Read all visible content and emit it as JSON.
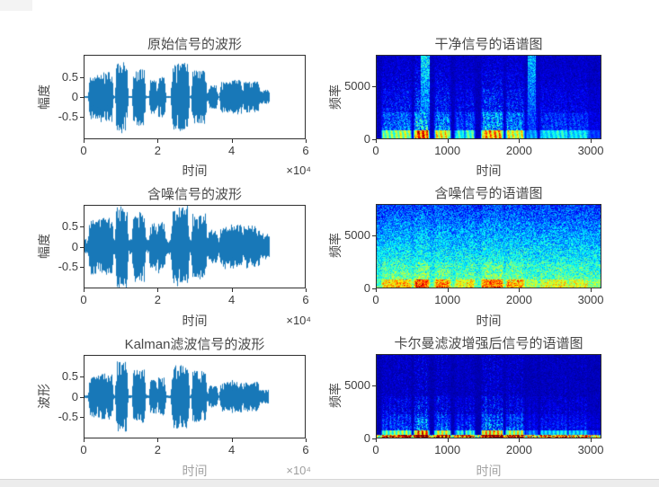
{
  "figure": {
    "background": "#ffffff",
    "colors": {
      "waveform_line": "#1878b8",
      "axis_box": "#2f2f2f",
      "tick_text": "#3d3d3d",
      "title_text": "#474747"
    }
  },
  "chart_data": [
    {
      "type": "line",
      "subtype": "waveform",
      "title": "原始信号的波形",
      "xlabel": "时间",
      "ylabel": "幅度",
      "x_multiplier": "×10⁴",
      "xlim": [
        0,
        6
      ],
      "ylim": [
        -1.05,
        1.05
      ],
      "xticks": [
        0,
        2,
        4,
        6
      ],
      "yticks": [
        0.5,
        0,
        -0.5
      ],
      "signal_end": 5.05,
      "noise_floor": 0.02,
      "amp_scale": 1.0,
      "envelope_segments": [
        [
          0.15,
          0.45,
          0.55
        ],
        [
          0.45,
          0.75,
          0.62
        ],
        [
          0.88,
          1.15,
          0.95
        ],
        [
          1.34,
          1.63,
          0.72
        ],
        [
          1.8,
          1.95,
          0.45
        ],
        [
          2.02,
          2.18,
          0.5
        ],
        [
          2.4,
          2.82,
          0.85
        ],
        [
          2.95,
          3.3,
          0.68
        ],
        [
          3.4,
          3.6,
          0.28
        ],
        [
          3.72,
          4.02,
          0.38
        ],
        [
          4.02,
          4.28,
          0.42
        ],
        [
          4.35,
          4.75,
          0.38
        ],
        [
          4.78,
          5.02,
          0.16
        ]
      ]
    },
    {
      "type": "heatmap",
      "subtype": "spectrogram",
      "style": "clean",
      "title": "干净信号的语谱图",
      "xlabel": "时间",
      "ylabel": "频率",
      "xlim": [
        0,
        3150
      ],
      "ylim": [
        0,
        8000
      ],
      "xticks": [
        0,
        1000,
        2000,
        3000
      ],
      "yticks": [
        5000,
        0
      ],
      "signal_end": 5.05,
      "bg_level": 0.06,
      "envelope_segments": [
        [
          0.15,
          0.45,
          0.55
        ],
        [
          0.45,
          0.75,
          0.62
        ],
        [
          0.88,
          1.15,
          0.95
        ],
        [
          1.34,
          1.63,
          0.72
        ],
        [
          1.8,
          1.95,
          0.45
        ],
        [
          2.02,
          2.18,
          0.5
        ],
        [
          2.4,
          2.82,
          0.85
        ],
        [
          2.95,
          3.3,
          0.68
        ],
        [
          3.4,
          3.6,
          0.28
        ],
        [
          3.72,
          4.02,
          0.38
        ],
        [
          4.02,
          4.28,
          0.42
        ],
        [
          4.35,
          4.75,
          0.38
        ],
        [
          4.78,
          5.02,
          0.16
        ]
      ],
      "tall_columns": [
        [
          1.1,
          0.1,
          0.5
        ],
        [
          3.5,
          0.09,
          0.42
        ]
      ]
    },
    {
      "type": "line",
      "subtype": "waveform",
      "title": "含噪信号的波形",
      "xlabel": "时间",
      "ylabel": "幅度",
      "x_multiplier": "×10⁴",
      "xlim": [
        0,
        6
      ],
      "ylim": [
        -1.05,
        1.05
      ],
      "xticks": [
        0,
        2,
        4,
        6
      ],
      "yticks": [
        0.5,
        0,
        -0.5
      ],
      "signal_end": 5.05,
      "noise_floor": 0.17,
      "amp_scale": 1.0,
      "envelope_segments": [
        [
          0.15,
          0.45,
          0.55
        ],
        [
          0.45,
          0.75,
          0.62
        ],
        [
          0.88,
          1.15,
          0.95
        ],
        [
          1.34,
          1.63,
          0.72
        ],
        [
          1.8,
          1.95,
          0.45
        ],
        [
          2.02,
          2.18,
          0.5
        ],
        [
          2.4,
          2.82,
          0.85
        ],
        [
          2.95,
          3.3,
          0.68
        ],
        [
          3.4,
          3.6,
          0.28
        ],
        [
          3.72,
          4.02,
          0.38
        ],
        [
          4.02,
          4.28,
          0.42
        ],
        [
          4.35,
          4.75,
          0.38
        ],
        [
          4.78,
          5.02,
          0.16
        ]
      ]
    },
    {
      "type": "heatmap",
      "subtype": "spectrogram",
      "style": "noisy",
      "title": "含噪信号的语谱图",
      "xlabel": "时间",
      "ylabel": "频率",
      "xlim": [
        0,
        3150
      ],
      "ylim": [
        0,
        8000
      ],
      "xticks": [
        0,
        1000,
        2000,
        3000
      ],
      "yticks": [
        5000,
        0
      ],
      "signal_end": 5.05,
      "bg_bottom": 0.46,
      "bg_top": 0.16,
      "envelope_segments": [
        [
          0.15,
          0.45,
          0.55
        ],
        [
          0.45,
          0.75,
          0.62
        ],
        [
          0.88,
          1.15,
          0.95
        ],
        [
          1.34,
          1.63,
          0.72
        ],
        [
          1.8,
          1.95,
          0.45
        ],
        [
          2.02,
          2.18,
          0.5
        ],
        [
          2.4,
          2.82,
          0.85
        ],
        [
          2.95,
          3.3,
          0.68
        ],
        [
          3.4,
          3.6,
          0.28
        ],
        [
          3.72,
          4.02,
          0.38
        ],
        [
          4.02,
          4.28,
          0.42
        ],
        [
          4.35,
          4.75,
          0.38
        ],
        [
          4.78,
          5.02,
          0.16
        ]
      ]
    },
    {
      "type": "line",
      "subtype": "waveform",
      "title": "Kalman滤波信号的波形",
      "xlabel": "时间",
      "ylabel": "波形",
      "x_multiplier": "×10⁴",
      "xlim": [
        0,
        6
      ],
      "ylim": [
        -1.05,
        1.05
      ],
      "xticks": [
        0,
        2,
        4,
        6
      ],
      "yticks": [
        0.5,
        0,
        -0.5
      ],
      "signal_end": 5.02,
      "noise_floor": 0.035,
      "amp_scale": 0.93,
      "envelope_segments": [
        [
          0.15,
          0.45,
          0.55
        ],
        [
          0.45,
          0.75,
          0.62
        ],
        [
          0.88,
          1.15,
          0.95
        ],
        [
          1.34,
          1.63,
          0.72
        ],
        [
          1.8,
          1.95,
          0.45
        ],
        [
          2.02,
          2.18,
          0.5
        ],
        [
          2.4,
          2.82,
          0.85
        ],
        [
          2.95,
          3.3,
          0.68
        ],
        [
          3.4,
          3.6,
          0.28
        ],
        [
          3.72,
          4.02,
          0.38
        ],
        [
          4.02,
          4.28,
          0.42
        ],
        [
          4.35,
          4.75,
          0.38
        ],
        [
          4.78,
          5.02,
          0.16
        ]
      ]
    },
    {
      "type": "heatmap",
      "subtype": "spectrogram",
      "style": "kalman",
      "title": "卡尔曼滤波增强后信号的语谱图",
      "xlabel": "时间",
      "ylabel": "频率",
      "xlim": [
        0,
        3150
      ],
      "ylim": [
        0,
        8000
      ],
      "xticks": [
        0,
        1000,
        2000,
        3000
      ],
      "yticks": [
        5000,
        0
      ],
      "signal_end": 5.05,
      "bg_level": 0.05,
      "envelope_segments": [
        [
          0.15,
          0.45,
          0.55
        ],
        [
          0.45,
          0.75,
          0.62
        ],
        [
          0.88,
          1.15,
          0.95
        ],
        [
          1.34,
          1.63,
          0.72
        ],
        [
          1.8,
          1.95,
          0.45
        ],
        [
          2.02,
          2.18,
          0.5
        ],
        [
          2.4,
          2.82,
          0.85
        ],
        [
          2.95,
          3.3,
          0.68
        ],
        [
          3.4,
          3.6,
          0.28
        ],
        [
          3.72,
          4.02,
          0.38
        ],
        [
          4.02,
          4.28,
          0.42
        ],
        [
          4.35,
          4.75,
          0.38
        ],
        [
          4.78,
          5.02,
          0.16
        ]
      ]
    }
  ]
}
